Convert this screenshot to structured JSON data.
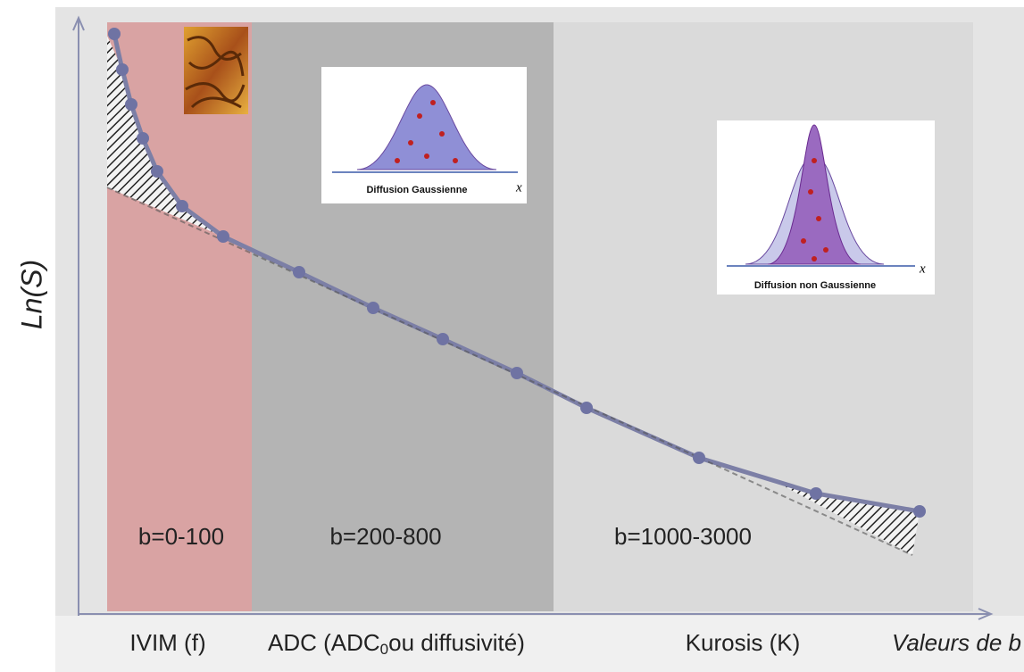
{
  "axis": {
    "y_label": "Ln(S)",
    "x_label": "Valeurs de b"
  },
  "regions": [
    {
      "range": "b=0-100",
      "label": "IVIM (f)"
    },
    {
      "range": "b=200-800",
      "label": {
        "prefix": "ADC (ADC",
        "subscript": "0",
        "suffix": "ou diffusivité)"
      }
    },
    {
      "range": "b=1000-3000",
      "label": "Kurosis (K)"
    }
  ],
  "insets": [
    {
      "caption": "Diffusion Gaussienne",
      "axis": "x"
    },
    {
      "caption": "Diffusion non Gaussienne",
      "axis": "x"
    }
  ]
}
